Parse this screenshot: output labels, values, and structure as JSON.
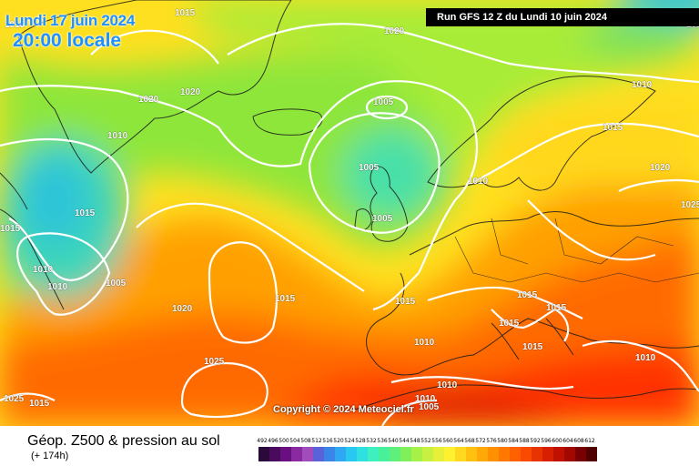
{
  "header": {
    "date": "Lundi 17 juin 2024",
    "time": "20:00 locale",
    "run": "Run GFS 12 Z du Lundi 10 juin 2024"
  },
  "footer": {
    "title": "Géop. Z500 & pression au sol",
    "forecast_hour": "(+ 174h)"
  },
  "copyright": "Copyright © 2024 Meteociel.fr",
  "isobar_labels": [
    "1015",
    "1020",
    "1020",
    "1020",
    "1010",
    "1010",
    "1015",
    "1005",
    "1005",
    "1005",
    "1015",
    "1010",
    "1020",
    "1025",
    "1015",
    "1010",
    "1015",
    "1010",
    "1015",
    "1010",
    "1005",
    "1015",
    "1010",
    "1025",
    "1015",
    "1015",
    "1015",
    "1020",
    "1010",
    "1010",
    "1015",
    "1010",
    "1015",
    "1005",
    "1025",
    "1015"
  ],
  "color_scale": {
    "labels": [
      "492",
      "496",
      "500",
      "504",
      "508",
      "512",
      "516",
      "520",
      "524",
      "528",
      "532",
      "536",
      "540",
      "544",
      "548",
      "552",
      "556",
      "560",
      "564",
      "568",
      "572",
      "576",
      "580",
      "584",
      "588",
      "592",
      "596",
      "600",
      "604",
      "608",
      "612"
    ],
    "colors": [
      "#2a0a3a",
      "#4a0b5e",
      "#6a0f80",
      "#8a2aa0",
      "#a04cbb",
      "#5a62d8",
      "#3a86e8",
      "#2ea8f0",
      "#28c8f0",
      "#2ee0e0",
      "#3ef0c0",
      "#48f09a",
      "#5ef07a",
      "#80f05a",
      "#a6f048",
      "#c8f040",
      "#e6f038",
      "#fff030",
      "#ffd820",
      "#ffc010",
      "#ffa808",
      "#ff9000",
      "#ff7800",
      "#ff6000",
      "#f84a00",
      "#e83400",
      "#d82000",
      "#c01000",
      "#a00800",
      "#780000",
      "#500000"
    ]
  }
}
